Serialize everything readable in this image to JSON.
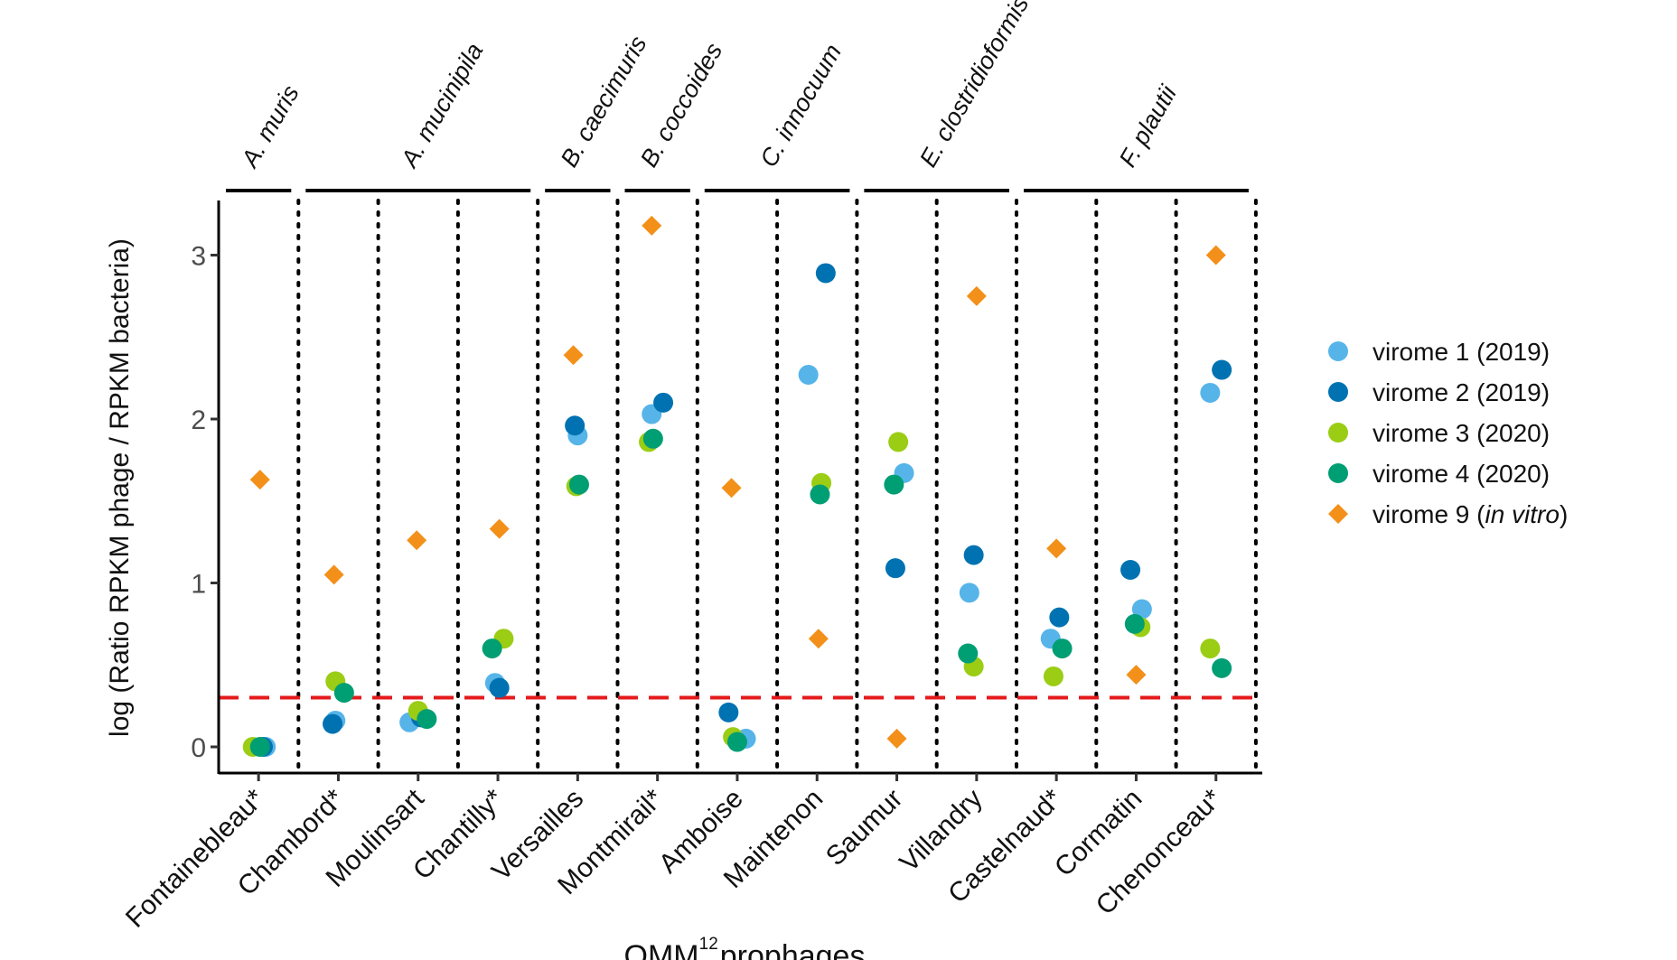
{
  "chart_data": {
    "type": "scatter",
    "xlabel_main": "OMM",
    "xlabel_sup": "12",
    "xlabel_rest": "prophages",
    "ylabel": "log (Ratio RPKM phage / RPKM bacteria)",
    "ylim": [
      -0.15,
      3.35
    ],
    "yticks": [
      0,
      1,
      2,
      3
    ],
    "threshold": 0.3,
    "threshold_color": "#e41a1c",
    "categories": [
      "Fontainebleau*",
      "Chambord*",
      "Moulinsart",
      "Chantilly*",
      "Versailles",
      "Montmirail*",
      "Amboise",
      "Maintenon",
      "Saumur",
      "Villandry",
      "Castelnaud*",
      "Cormatin",
      "Chenonceau*"
    ],
    "groups": [
      {
        "label": "A. muris",
        "start": 0,
        "end": 0
      },
      {
        "label": "A. mucinipila",
        "start": 1,
        "end": 3
      },
      {
        "label": "B. caecimuris",
        "start": 4,
        "end": 4
      },
      {
        "label": "B. coccoides",
        "start": 5,
        "end": 5
      },
      {
        "label": "C. innocuum",
        "start": 6,
        "end": 7
      },
      {
        "label": "E. clostridioformis",
        "start": 8,
        "end": 9
      },
      {
        "label": "F. plautii",
        "start": 10,
        "end": 12
      }
    ],
    "legend": [
      {
        "main": "virome 1 (2019)",
        "pre": "",
        "italic": "",
        "post": ""
      },
      {
        "main": "virome 2 (2019)",
        "pre": "",
        "italic": "",
        "post": ""
      },
      {
        "main": "virome 3 (2020)",
        "pre": "",
        "italic": "",
        "post": ""
      },
      {
        "main": "virome 4 (2020)",
        "pre": "",
        "italic": "",
        "post": ""
      },
      {
        "main": "",
        "pre": "virome 9 (",
        "italic": "in vitro",
        "post": ")"
      }
    ],
    "series": [
      {
        "name": "virome 1 (2019)",
        "color": "#56b4e9",
        "shape": "circle",
        "points": [
          [
            0,
            0.25,
            0.0
          ],
          [
            1,
            -0.1,
            0.16
          ],
          [
            2,
            -0.3,
            0.15
          ],
          [
            3,
            -0.1,
            0.39
          ],
          [
            4,
            0.0,
            1.9
          ],
          [
            5,
            -0.2,
            2.03
          ],
          [
            6,
            0.3,
            0.05
          ],
          [
            7,
            -0.3,
            2.27
          ],
          [
            8,
            0.25,
            1.67
          ],
          [
            9,
            -0.25,
            0.94
          ],
          [
            10,
            -0.2,
            0.66
          ],
          [
            11,
            0.2,
            0.84
          ],
          [
            12,
            -0.2,
            2.16
          ]
        ]
      },
      {
        "name": "virome 2 (2019)",
        "color": "#0072b2",
        "shape": "circle",
        "points": [
          [
            0,
            0.15,
            0.0
          ],
          [
            1,
            -0.2,
            0.14
          ],
          [
            2,
            0.1,
            0.18
          ],
          [
            3,
            0.05,
            0.36
          ],
          [
            4,
            -0.1,
            1.96
          ],
          [
            5,
            0.2,
            2.1
          ],
          [
            6,
            -0.3,
            0.21
          ],
          [
            7,
            0.3,
            2.89
          ],
          [
            8,
            -0.05,
            1.09
          ],
          [
            9,
            -0.1,
            1.17
          ],
          [
            10,
            0.1,
            0.79
          ],
          [
            11,
            -0.2,
            1.08
          ],
          [
            12,
            0.2,
            2.3
          ]
        ]
      },
      {
        "name": "virome 3 (2020)",
        "color": "#9acd14",
        "shape": "circle",
        "points": [
          [
            0,
            -0.2,
            0.0
          ],
          [
            1,
            -0.1,
            0.4
          ],
          [
            2,
            0.0,
            0.22
          ],
          [
            3,
            0.2,
            0.66
          ],
          [
            4,
            -0.05,
            1.59
          ],
          [
            5,
            -0.3,
            1.86
          ],
          [
            6,
            -0.15,
            0.06
          ],
          [
            7,
            0.15,
            1.61
          ],
          [
            8,
            0.05,
            1.86
          ],
          [
            9,
            -0.1,
            0.49
          ],
          [
            10,
            -0.1,
            0.43
          ],
          [
            11,
            0.15,
            0.73
          ],
          [
            12,
            -0.2,
            0.6
          ]
        ]
      },
      {
        "name": "virome 4 (2020)",
        "color": "#009e73",
        "shape": "circle",
        "points": [
          [
            0,
            0.05,
            0.0
          ],
          [
            1,
            0.2,
            0.33
          ],
          [
            2,
            0.3,
            0.17
          ],
          [
            3,
            -0.2,
            0.6
          ],
          [
            4,
            0.05,
            1.6
          ],
          [
            5,
            -0.15,
            1.88
          ],
          [
            6,
            0.0,
            0.03
          ],
          [
            7,
            0.1,
            1.54
          ],
          [
            8,
            -0.1,
            1.6
          ],
          [
            9,
            -0.3,
            0.57
          ],
          [
            10,
            0.2,
            0.6
          ],
          [
            11,
            -0.05,
            0.75
          ],
          [
            12,
            0.2,
            0.48
          ]
        ]
      },
      {
        "name": "virome 9 (in vitro)",
        "color": "#f39019",
        "shape": "diamond",
        "points": [
          [
            0,
            0.05,
            1.63
          ],
          [
            1,
            -0.15,
            1.05
          ],
          [
            2,
            -0.05,
            1.26
          ],
          [
            3,
            0.05,
            1.33
          ],
          [
            4,
            -0.15,
            2.39
          ],
          [
            5,
            -0.2,
            3.18
          ],
          [
            6,
            -0.2,
            1.58
          ],
          [
            7,
            0.05,
            0.66
          ],
          [
            8,
            0.0,
            0.05
          ],
          [
            9,
            0.0,
            2.75
          ],
          [
            10,
            0.0,
            1.21
          ],
          [
            11,
            0.0,
            0.44
          ],
          [
            12,
            0.0,
            3.0
          ]
        ]
      }
    ]
  }
}
